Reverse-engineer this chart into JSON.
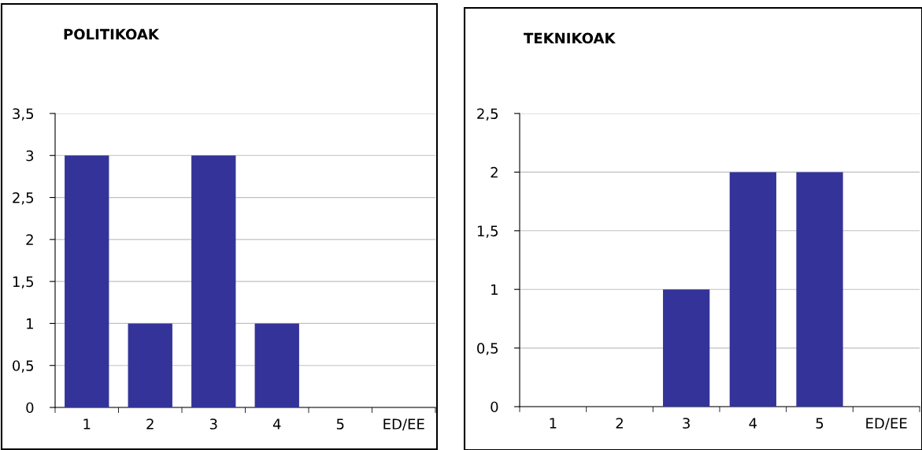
{
  "chart_data": [
    {
      "type": "bar",
      "title": "POLITIKOAK",
      "categories": [
        "1",
        "2",
        "3",
        "4",
        "5",
        "ED/EE"
      ],
      "values": [
        3,
        1,
        3,
        1,
        0,
        0
      ],
      "color": "#333399",
      "ylim": [
        0,
        3.5
      ],
      "yticks": [
        0,
        {
          "value": 0.5,
          "label": "0,5"
        },
        1,
        {
          "value": 1.5,
          "label": "1,5"
        },
        2,
        {
          "value": 2.5,
          "label": "2,5"
        },
        3,
        {
          "value": 3.5,
          "label": "3,5"
        }
      ],
      "grid": "y",
      "legend": false
    },
    {
      "type": "bar",
      "title": "TEKNIKOAK",
      "categories": [
        "1",
        "2",
        "3",
        "4",
        "5",
        "ED/EE"
      ],
      "values": [
        0,
        0,
        1,
        2,
        2,
        0
      ],
      "color": "#333399",
      "ylim": [
        0,
        2.5
      ],
      "yticks": [
        0,
        {
          "value": 0.5,
          "label": "0,5"
        },
        1,
        {
          "value": 1.5,
          "label": "1,5"
        },
        2,
        {
          "value": 2.5,
          "label": "2,5"
        }
      ],
      "grid": "y",
      "legend": false
    }
  ]
}
